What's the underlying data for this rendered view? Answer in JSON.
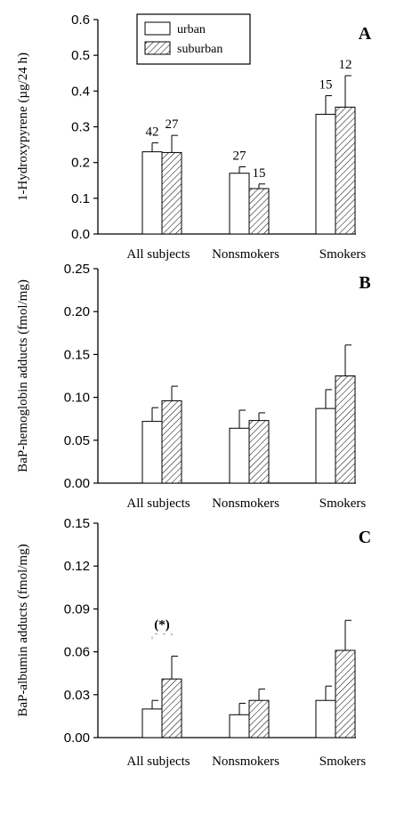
{
  "chart_data": [
    {
      "panel": "A",
      "type": "bar",
      "ylabel": "1-Hydroxypyrene (µg/24 h)",
      "ylim": [
        0,
        0.6
      ],
      "yticks": [
        "0.0",
        "0.1",
        "0.2",
        "0.3",
        "0.4",
        "0.5",
        "0.6"
      ],
      "categories": [
        "All subjects",
        "Nonsmokers",
        "Smokers"
      ],
      "legend": {
        "placement": "top-left",
        "entries": [
          "urban",
          "suburban"
        ]
      },
      "series": [
        {
          "name": "urban",
          "pattern": "open",
          "values": [
            0.23,
            0.17,
            0.335
          ],
          "errors": [
            0.025,
            0.018,
            0.052
          ],
          "n": [
            "42",
            "27",
            "15"
          ]
        },
        {
          "name": "suburban",
          "pattern": "hatched",
          "values": [
            0.228,
            0.127,
            0.355
          ],
          "errors": [
            0.048,
            0.013,
            0.088
          ],
          "n": [
            "27",
            "15",
            "12"
          ]
        }
      ]
    },
    {
      "panel": "B",
      "type": "bar",
      "ylabel": "BaP-hemoglobin adducts (fmol/mg)",
      "ylim": [
        0,
        0.25
      ],
      "yticks": [
        "0.00",
        "0.05",
        "0.10",
        "0.15",
        "0.20",
        "0.25"
      ],
      "categories": [
        "All subjects",
        "Nonsmokers",
        "Smokers"
      ],
      "series": [
        {
          "name": "urban",
          "pattern": "open",
          "values": [
            0.072,
            0.064,
            0.087
          ],
          "errors": [
            0.016,
            0.021,
            0.022
          ]
        },
        {
          "name": "suburban",
          "pattern": "hatched",
          "values": [
            0.096,
            0.073,
            0.125
          ],
          "errors": [
            0.017,
            0.009,
            0.036
          ]
        }
      ]
    },
    {
      "panel": "C",
      "type": "bar",
      "ylabel": "BaP-albumin adducts (fmol/mg)",
      "ylim": [
        0,
        0.15
      ],
      "yticks": [
        "0.00",
        "0.03",
        "0.06",
        "0.09",
        "0.12",
        "0.15"
      ],
      "categories": [
        "All subjects",
        "Nonsmokers",
        "Smokers"
      ],
      "annotation": {
        "text": "(*)",
        "category": "All subjects"
      },
      "series": [
        {
          "name": "urban",
          "pattern": "open",
          "values": [
            0.02,
            0.016,
            0.026
          ],
          "errors": [
            0.006,
            0.008,
            0.01
          ]
        },
        {
          "name": "suburban",
          "pattern": "hatched",
          "values": [
            0.041,
            0.026,
            0.061
          ],
          "errors": [
            0.016,
            0.008,
            0.021
          ]
        }
      ]
    }
  ]
}
